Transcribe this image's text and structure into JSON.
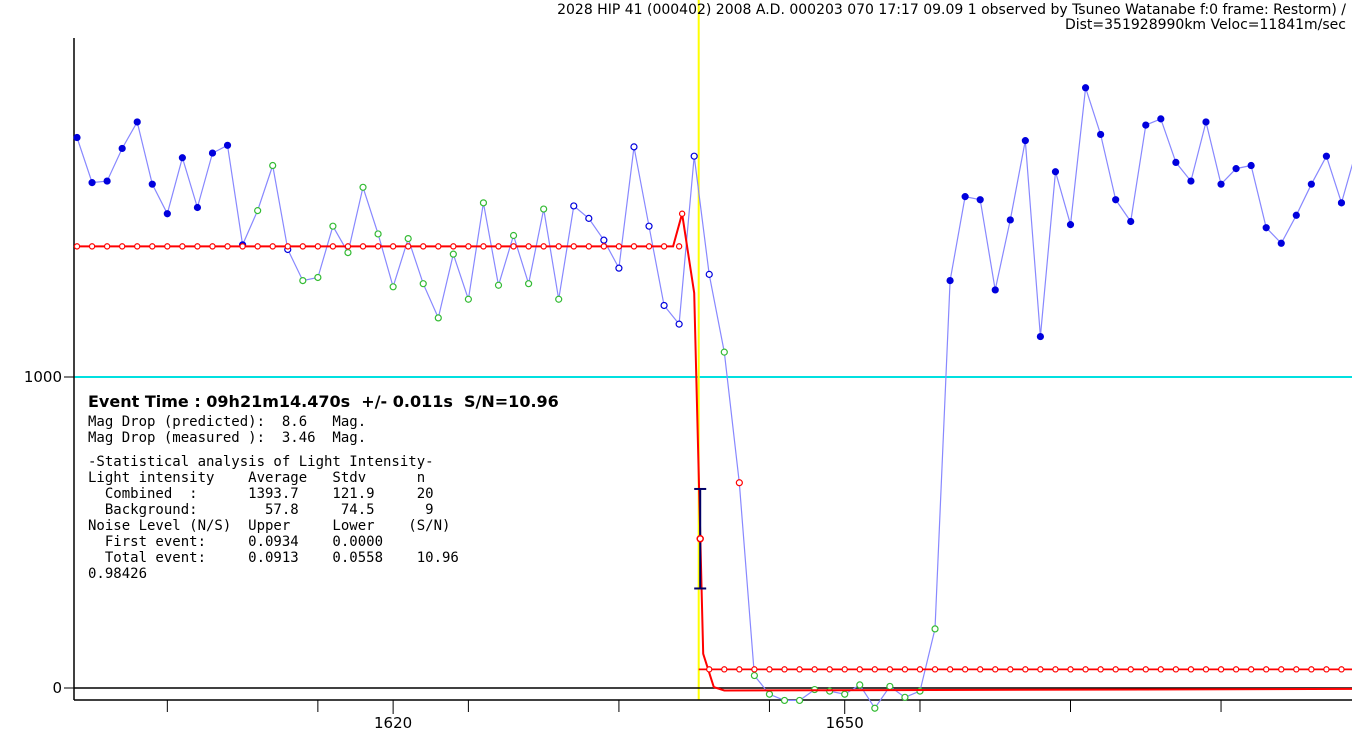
{
  "header": {
    "title_line": "2028 HIP 41 (000402) 2008 A.D. 000203 070 17:17 09.09 1 observed by Tsuneo Watanabe  f:0  frame: Restorm) /",
    "dist_veloc": "Dist=351928990km Veloc=11841m/sec"
  },
  "stats": {
    "event_time": "Event Time : 09h21m14.470s  +/- 0.011s  S/N=10.96",
    "mag_drop_predicted": "Mag Drop (predicted):  8.6   Mag.",
    "mag_drop_measured": "Mag Drop (measured ):  3.46  Mag.",
    "section_title": "-Statistical analysis of Light Intensity-",
    "header_row": "Light intensity    Average   Stdv      n",
    "combined_row": "  Combined  :      1393.7    121.9     20",
    "background_row": "  Background:        57.8     74.5      9",
    "noise_header": "Noise Level (N/S)  Upper     Lower    (S/N)",
    "first_event": "  First event:     0.0934    0.0000",
    "total_event": "  Total event:     0.0913    0.0558    10.96",
    "extra_value": "0.98426"
  },
  "chart_data": {
    "type": "line",
    "title": "",
    "xlabel": "",
    "ylabel": "",
    "xlim": [
      1598.8,
      1683.7
    ],
    "ylim": [
      -60,
      2100
    ],
    "xticks_labeled": [
      1620,
      1650
    ],
    "xticks_minor": [
      1605,
      1615,
      1625,
      1635,
      1645,
      1655,
      1665,
      1675
    ],
    "yticks_labeled": [
      0,
      1000
    ],
    "event_frame": 1640.3,
    "reference_level": 1000,
    "series": [
      {
        "style": "blue",
        "x_start": 1599,
        "x_step": 1,
        "values": [
          1770,
          1625,
          1630,
          1735,
          1820,
          1620,
          1525,
          1705,
          1545,
          1720,
          1745,
          1425,
          1535,
          1680,
          1410,
          1310,
          1320,
          1485,
          1400,
          1610,
          1460,
          1290,
          1445,
          1300,
          1190,
          1395,
          1250,
          1560,
          1295,
          1455,
          1300,
          1540,
          1250,
          1550,
          1510,
          1440,
          1350,
          1740,
          1485,
          1230,
          1170,
          1710,
          1330,
          1080,
          660,
          40,
          -20,
          -40,
          -40,
          -5,
          -10,
          -20,
          10,
          -65,
          5,
          -30,
          -10,
          190,
          1310,
          1580,
          1570,
          1280,
          1505,
          1760,
          1130,
          1660,
          1490,
          1930,
          1780,
          1570,
          1500,
          1810,
          1830,
          1690,
          1630,
          1820,
          1620,
          1670,
          1680,
          1480,
          1430,
          1520,
          1620,
          1710,
          1560,
          1730,
          1430,
          1710,
          1540,
          1820,
          1560
        ]
      },
      {
        "style": "red-model",
        "x": [
          1599,
          1640,
          1640.6,
          1641.3,
          1642,
          1684
        ],
        "values": [
          1420,
          1420,
          110,
          3,
          -8,
          -3
        ]
      }
    ],
    "background_level": 60,
    "pre_event_spike": {
      "x": 1639.2,
      "value": 1525
    },
    "error_bar": {
      "x": 1640.4,
      "value": 480,
      "low": 320,
      "high": 640
    }
  }
}
